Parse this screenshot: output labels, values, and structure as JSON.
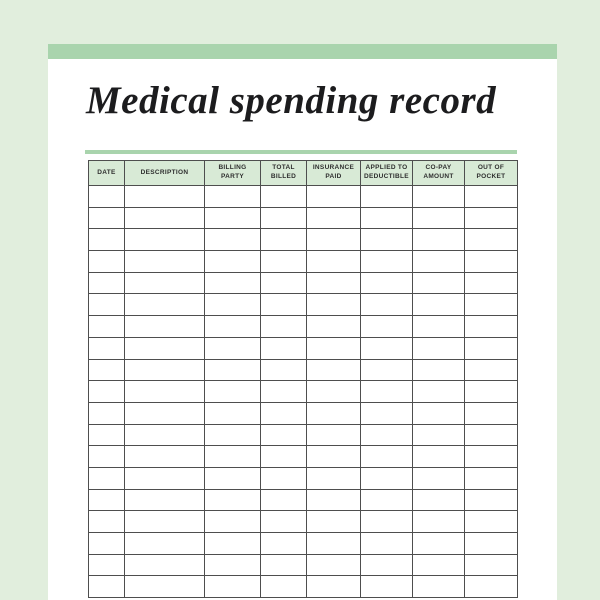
{
  "document": {
    "title": "Medical spending record"
  },
  "colors": {
    "background": "#e1eedd",
    "accent_bar": "#a9d4ad",
    "divider": "#a9d4ad",
    "header_bg": "#d8ead6",
    "table_border": "#4e4e4e",
    "title_color": "#1c1c1e",
    "header_text": "#2e2e2e",
    "page_bg": "#ffffff"
  },
  "table": {
    "columns": [
      {
        "label": "DATE"
      },
      {
        "label": "DESCRIPTION"
      },
      {
        "label": "BILLING PARTY"
      },
      {
        "label": "TOTAL BILLED"
      },
      {
        "label": "INSURANCE PAID"
      },
      {
        "label": "APPLIED TO DEDUCTIBLE"
      },
      {
        "label": "CO-PAY AMOUNT"
      },
      {
        "label": "OUT OF POCKET"
      }
    ],
    "empty_row_count": 19,
    "cell_value": ""
  }
}
